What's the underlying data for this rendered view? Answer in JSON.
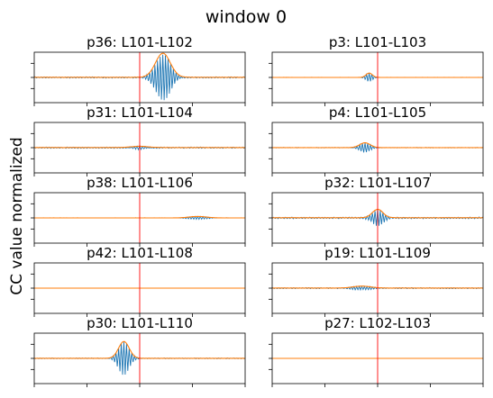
{
  "figure": {
    "title": "window 0",
    "ylabel": "CC value normalized"
  },
  "colors": {
    "cc": "#1f77b4",
    "envelope": "#ff7f0e",
    "marker": "#ff0000"
  },
  "chart_data": {
    "type": "line",
    "grid": false,
    "layout": "5 rows x 2 columns",
    "xlim": [
      -1,
      1
    ],
    "ylim": [
      -1.05,
      1.05
    ],
    "marker_x": 0,
    "panels": [
      {
        "title": "p36: L101-L102",
        "peak_x": 0.22,
        "amplitude": 1.0,
        "width": 0.07,
        "noise": 0.05
      },
      {
        "title": "p3: L101-L103",
        "peak_x": -0.08,
        "amplitude": 0.18,
        "width": 0.03,
        "noise": 0.01
      },
      {
        "title": "p31: L101-L104",
        "peak_x": 0.0,
        "amplitude": 0.05,
        "width": 0.08,
        "noise": 0.05
      },
      {
        "title": "p4: L101-L105",
        "peak_x": -0.12,
        "amplitude": 0.2,
        "width": 0.05,
        "noise": 0.02
      },
      {
        "title": "p38: L101-L106",
        "peak_x": 0.55,
        "amplitude": 0.06,
        "width": 0.08,
        "noise": 0.01
      },
      {
        "title": "p32: L101-L107",
        "peak_x": 0.0,
        "amplitude": 0.35,
        "width": 0.05,
        "noise": 0.06
      },
      {
        "title": "p42: L101-L108",
        "peak_x": 0.0,
        "amplitude": 0.0,
        "width": 0.05,
        "noise": 0.0
      },
      {
        "title": "p19: L101-L109",
        "peak_x": -0.15,
        "amplitude": 0.08,
        "width": 0.08,
        "noise": 0.04
      },
      {
        "title": "p30: L101-L110",
        "peak_x": -0.15,
        "amplitude": 0.7,
        "width": 0.05,
        "noise": 0.03
      },
      {
        "title": "p27: L102-L103",
        "peak_x": 0.0,
        "amplitude": 0.0,
        "width": 0.05,
        "noise": 0.0
      }
    ]
  }
}
